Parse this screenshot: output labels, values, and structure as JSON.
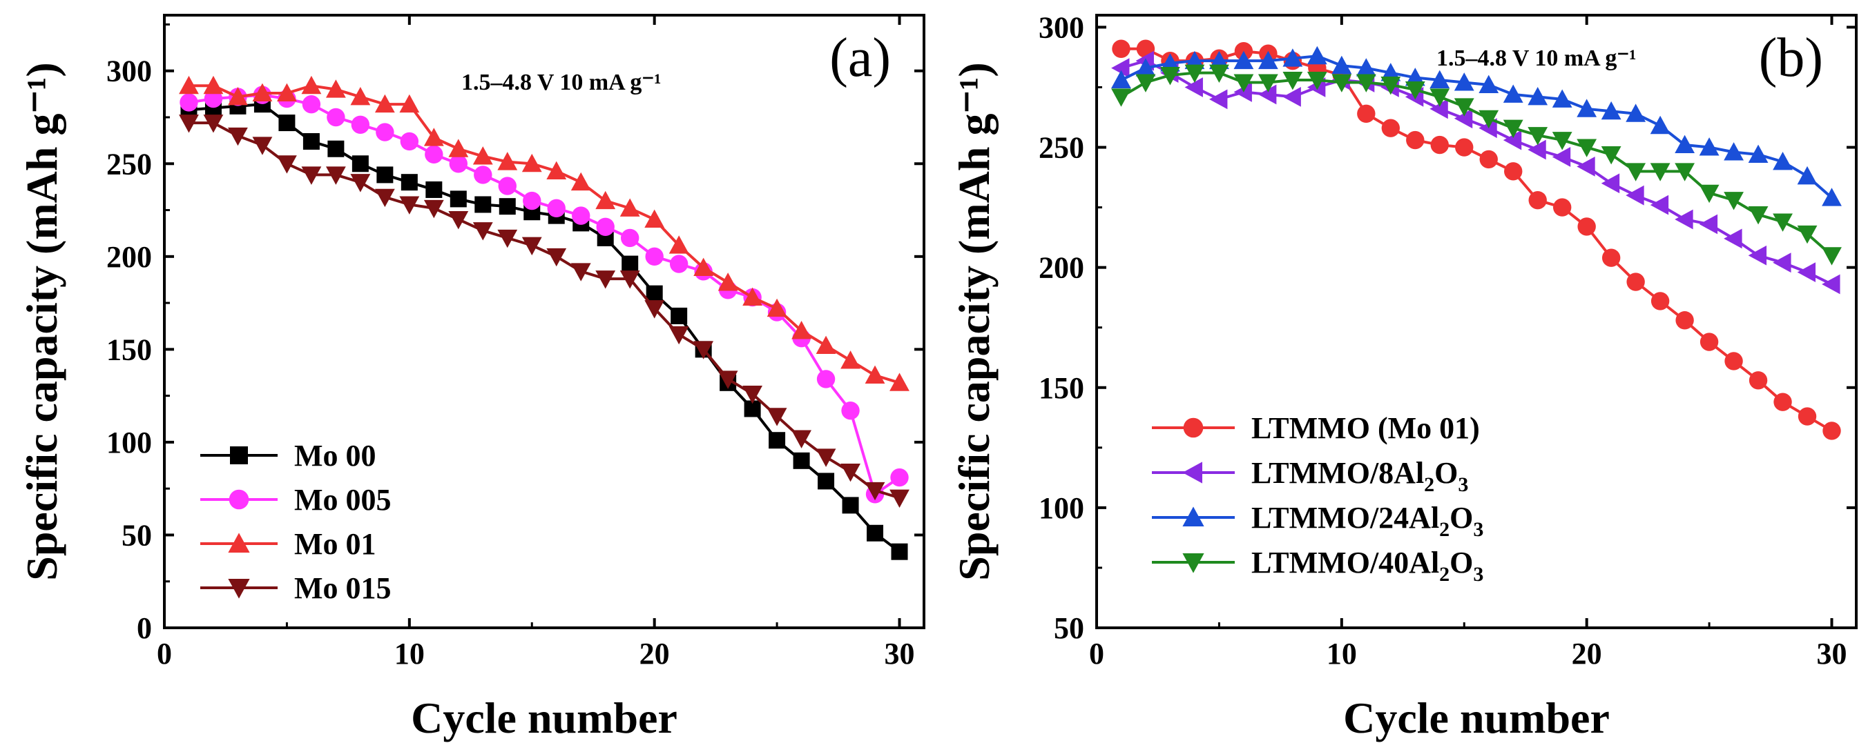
{
  "chart_data": [
    {
      "type": "line",
      "panel_label": "(a)",
      "annotation": "1.5–4.8 V 10 mA g⁻¹",
      "xlabel": "Cycle number",
      "ylabel": "Specific capacity (mAh g⁻¹)",
      "xlim": [
        0,
        31
      ],
      "ylim": [
        0,
        330
      ],
      "xticks": [
        "0",
        "10",
        "20",
        "30"
      ],
      "yticks": [
        "0",
        "50",
        "100",
        "150",
        "200",
        "250",
        "300"
      ],
      "legend_position": "bottom-left",
      "x": [
        1,
        2,
        3,
        4,
        5,
        6,
        7,
        8,
        9,
        10,
        11,
        12,
        13,
        14,
        15,
        16,
        17,
        18,
        19,
        20,
        21,
        22,
        23,
        24,
        25,
        26,
        27,
        28,
        29,
        30
      ],
      "series": [
        {
          "name": "Mo 00",
          "color": "#000000",
          "marker": "square",
          "values": [
            279,
            280,
            281,
            282,
            272,
            262,
            258,
            250,
            244,
            240,
            236,
            231,
            228,
            227,
            224,
            222,
            218,
            210,
            196,
            180,
            168,
            150,
            132,
            118,
            101,
            90,
            79,
            66,
            51,
            41
          ]
        },
        {
          "name": "Mo 005",
          "color": "#ff33ff",
          "marker": "circle",
          "values": [
            283,
            285,
            286,
            287,
            285,
            282,
            275,
            271,
            267,
            262,
            255,
            250,
            244,
            238,
            230,
            226,
            222,
            216,
            210,
            200,
            196,
            192,
            182,
            178,
            170,
            156,
            134,
            117,
            72,
            81
          ]
        },
        {
          "name": "Mo 01",
          "color": "#ee3333",
          "marker": "triangle-up",
          "values": [
            292,
            292,
            286,
            288,
            288,
            292,
            290,
            286,
            282,
            282,
            264,
            258,
            254,
            251,
            250,
            246,
            240,
            230,
            226,
            220,
            206,
            194,
            186,
            178,
            172,
            160,
            152,
            144,
            136,
            132
          ]
        },
        {
          "name": "Mo 015",
          "color": "#7b1113",
          "marker": "triangle-down",
          "values": [
            272,
            272,
            265,
            260,
            250,
            244,
            244,
            240,
            232,
            228,
            226,
            220,
            214,
            210,
            206,
            200,
            192,
            188,
            188,
            172,
            158,
            150,
            134,
            126,
            114,
            102,
            92,
            84,
            74,
            70
          ]
        }
      ]
    },
    {
      "type": "line",
      "panel_label": "(b)",
      "annotation": "1.5–4.8 V 10 mA g⁻¹",
      "xlabel": "Cycle number",
      "ylabel": "Specific capacity (mAh g⁻¹)",
      "xlim": [
        0,
        31
      ],
      "ylim": [
        50,
        305
      ],
      "xticks": [
        "0",
        "10",
        "20",
        "30"
      ],
      "yticks": [
        "50",
        "100",
        "150",
        "200",
        "250",
        "300"
      ],
      "legend_position": "bottom-left",
      "x": [
        1,
        2,
        3,
        4,
        5,
        6,
        7,
        8,
        9,
        10,
        11,
        12,
        13,
        14,
        15,
        16,
        17,
        18,
        19,
        20,
        21,
        22,
        23,
        24,
        25,
        26,
        27,
        28,
        29,
        30
      ],
      "series": [
        {
          "name": "LTMMO (Mo 01)",
          "name_parts": [
            [
              "LTMMO (Mo 01)",
              false
            ]
          ],
          "color": "#ee3333",
          "marker": "circle",
          "values": [
            291,
            291,
            286,
            286,
            287,
            290,
            289,
            286,
            283,
            280,
            264,
            258,
            253,
            251,
            250,
            245,
            240,
            228,
            225,
            217,
            204,
            194,
            186,
            178,
            169,
            161,
            153,
            144,
            138,
            132
          ]
        },
        {
          "name": "LTMMO/8Al2O3",
          "name_parts": [
            [
              "LTMMO/8Al",
              false
            ],
            [
              "2",
              true
            ],
            [
              "O",
              false
            ],
            [
              "3",
              true
            ]
          ],
          "color": "#8a2be2",
          "marker": "triangle-left",
          "values": [
            283,
            286,
            281,
            275,
            270,
            273,
            272,
            271,
            275,
            278,
            277,
            275,
            271,
            266,
            262,
            258,
            253,
            249,
            246,
            242,
            235,
            230,
            226,
            220,
            218,
            212,
            205,
            202,
            198,
            193
          ]
        },
        {
          "name": "LTMMO/24Al2O3",
          "name_parts": [
            [
              "LTMMO/24Al",
              false
            ],
            [
              "2",
              true
            ],
            [
              "O",
              false
            ],
            [
              "3",
              true
            ]
          ],
          "color": "#1a4fd8",
          "marker": "triangle-up",
          "values": [
            278,
            283,
            285,
            286,
            286,
            286,
            286,
            287,
            288,
            284,
            283,
            281,
            279,
            278,
            277,
            276,
            272,
            271,
            270,
            266,
            265,
            264,
            259,
            251,
            250,
            248,
            247,
            244,
            238,
            229
          ]
        },
        {
          "name": "LTMMO/40Al2O3",
          "name_parts": [
            [
              "LTMMO/40Al",
              false
            ],
            [
              "2",
              true
            ],
            [
              "O",
              false
            ],
            [
              "3",
              true
            ]
          ],
          "color": "#1f8a1f",
          "marker": "triangle-down",
          "values": [
            271,
            277,
            280,
            281,
            281,
            277,
            277,
            278,
            278,
            277,
            277,
            276,
            274,
            271,
            267,
            262,
            258,
            255,
            253,
            250,
            247,
            240,
            240,
            240,
            231,
            228,
            222,
            219,
            214,
            205
          ]
        }
      ]
    }
  ]
}
